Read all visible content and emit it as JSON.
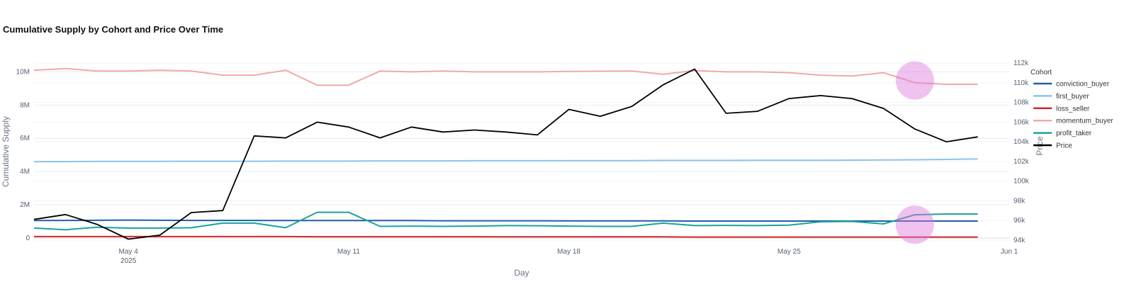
{
  "chart_data": {
    "type": "line",
    "title": "Cumulative Supply by Cohort and Price Over Time",
    "xlabel": "Day",
    "ylabel": "Cumulative Supply",
    "y2label": "Price",
    "x": [
      "2025-05-01",
      "2025-05-02",
      "2025-05-03",
      "2025-05-04",
      "2025-05-05",
      "2025-05-06",
      "2025-05-07",
      "2025-05-08",
      "2025-05-09",
      "2025-05-10",
      "2025-05-11",
      "2025-05-12",
      "2025-05-13",
      "2025-05-14",
      "2025-05-15",
      "2025-05-16",
      "2025-05-17",
      "2025-05-18",
      "2025-05-19",
      "2025-05-20",
      "2025-05-21",
      "2025-05-22",
      "2025-05-23",
      "2025-05-24",
      "2025-05-25",
      "2025-05-26",
      "2025-05-27",
      "2025-05-28",
      "2025-05-29",
      "2025-05-30",
      "2025-05-31",
      "2025-06-01"
    ],
    "x_ticks": [
      {
        "date": "2025-05-04",
        "label": "May 4",
        "sublabel": "2025"
      },
      {
        "date": "2025-05-11",
        "label": "May 11",
        "sublabel": ""
      },
      {
        "date": "2025-05-18",
        "label": "May 18",
        "sublabel": ""
      },
      {
        "date": "2025-05-25",
        "label": "May 25",
        "sublabel": ""
      },
      {
        "date": "2025-06-01",
        "label": "Jun 1",
        "sublabel": ""
      }
    ],
    "y_ticks": [
      {
        "value": 0,
        "label": "0"
      },
      {
        "value": 2000000,
        "label": "2M"
      },
      {
        "value": 4000000,
        "label": "4M"
      },
      {
        "value": 6000000,
        "label": "6M"
      },
      {
        "value": 8000000,
        "label": "8M"
      },
      {
        "value": 10000000,
        "label": "10M"
      }
    ],
    "y2_ticks": [
      {
        "value": 94000,
        "label": "94k"
      },
      {
        "value": 96000,
        "label": "96k"
      },
      {
        "value": 98000,
        "label": "98k"
      },
      {
        "value": 100000,
        "label": "100k"
      },
      {
        "value": 102000,
        "label": "102k"
      },
      {
        "value": 104000,
        "label": "104k"
      },
      {
        "value": 106000,
        "label": "106k"
      },
      {
        "value": 108000,
        "label": "108k"
      },
      {
        "value": 110000,
        "label": "110k"
      },
      {
        "value": 112000,
        "label": "112k"
      }
    ],
    "ylim": [
      -300000,
      10700000
    ],
    "y2lim": [
      93700,
      112300
    ],
    "grid": true,
    "legend_title": "Cohort",
    "legend_position": "right",
    "series": [
      {
        "name": "conviction_buyer",
        "axis": "y",
        "color": "#1f5fa8",
        "values": [
          1050000,
          1060000,
          1070000,
          1080000,
          1070000,
          1060000,
          1060000,
          1060000,
          1050000,
          1050000,
          1050000,
          1050000,
          1050000,
          1040000,
          1040000,
          1040000,
          1040000,
          1030000,
          1030000,
          1030000,
          1030000,
          1020000,
          1020000,
          1020000,
          1020000,
          1020000,
          1020000,
          1020000,
          1020000,
          1020000,
          1020000,
          null
        ]
      },
      {
        "name": "first_buyer",
        "axis": "y",
        "color": "#8ec3ea",
        "values": [
          4600000,
          4600000,
          4610000,
          4610000,
          4610000,
          4620000,
          4620000,
          4620000,
          4630000,
          4630000,
          4630000,
          4640000,
          4640000,
          4640000,
          4650000,
          4650000,
          4650000,
          4660000,
          4660000,
          4660000,
          4670000,
          4670000,
          4670000,
          4680000,
          4680000,
          4680000,
          4690000,
          4700000,
          4710000,
          4730000,
          4760000,
          null
        ]
      },
      {
        "name": "loss_seller",
        "axis": "y",
        "color": "#d62728",
        "values": [
          90000,
          90000,
          90000,
          90000,
          90000,
          90000,
          90000,
          90000,
          90000,
          80000,
          80000,
          80000,
          80000,
          80000,
          80000,
          70000,
          70000,
          70000,
          70000,
          70000,
          70000,
          60000,
          60000,
          60000,
          60000,
          60000,
          60000,
          60000,
          60000,
          60000,
          60000,
          null
        ]
      },
      {
        "name": "momentum_buyer",
        "axis": "y",
        "color": "#f4a8a8",
        "values": [
          10100000,
          10200000,
          10050000,
          10050000,
          10100000,
          10050000,
          9800000,
          9800000,
          10100000,
          9200000,
          9200000,
          10050000,
          10000000,
          10050000,
          10000000,
          10000000,
          10000000,
          10030000,
          10040000,
          10050000,
          9850000,
          10080000,
          10000000,
          10000000,
          9950000,
          9800000,
          9750000,
          9950000,
          9350000,
          9250000,
          9250000,
          null
        ]
      },
      {
        "name": "profit_taker",
        "axis": "y",
        "color": "#1aa39a",
        "values": [
          600000,
          500000,
          650000,
          600000,
          600000,
          620000,
          900000,
          900000,
          620000,
          1550000,
          1550000,
          700000,
          720000,
          700000,
          720000,
          750000,
          740000,
          720000,
          700000,
          700000,
          900000,
          750000,
          760000,
          750000,
          780000,
          980000,
          1000000,
          850000,
          1400000,
          1450000,
          1450000,
          null
        ]
      },
      {
        "name": "Price",
        "axis": "y2",
        "color": "#000000",
        "values": [
          96100,
          96600,
          95600,
          94100,
          94500,
          96800,
          97000,
          104600,
          104400,
          106000,
          105500,
          104400,
          105500,
          105000,
          105200,
          105000,
          104700,
          107300,
          106600,
          107600,
          109800,
          111400,
          106900,
          107100,
          108400,
          108700,
          108400,
          107400,
          105300,
          104000,
          104500,
          null
        ]
      }
    ]
  }
}
